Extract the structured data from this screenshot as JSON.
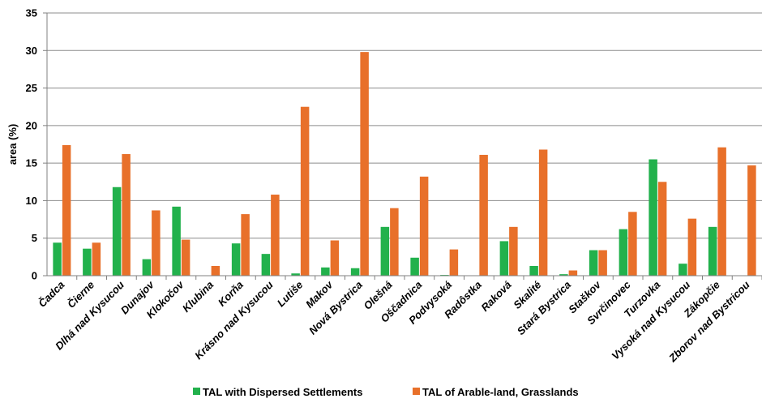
{
  "chart_data": {
    "type": "bar",
    "ylabel": "area (%)",
    "xlabel": "",
    "ylim": [
      0,
      35
    ],
    "yticks": [
      0,
      5,
      10,
      15,
      20,
      25,
      30,
      35
    ],
    "grid": true,
    "legend_position": "bottom",
    "categories": [
      "Čadca",
      "Čierne",
      "Dlhá nad Kysucou",
      "Dunajov",
      "Klokočov",
      "Klubina",
      "Korňa",
      "Krásno nad Kysucou",
      "Lutiše",
      "Makov",
      "Nová Bystrica",
      "Olešná",
      "Oščadnica",
      "Podvysoká",
      "Radôstka",
      "Raková",
      "Skalité",
      "Stará Bystrica",
      "Staškov",
      "Svrčinovec",
      "Turzovka",
      "Vysoká nad Kysucou",
      "Zákopčie",
      "Zborov nad Bystricou"
    ],
    "series": [
      {
        "name": "TAL with Dispersed Settlements",
        "color": "#22b14c",
        "values": [
          4.4,
          3.6,
          11.8,
          2.2,
          9.2,
          0.0,
          4.3,
          2.9,
          0.3,
          1.1,
          1.0,
          6.5,
          2.4,
          0.1,
          0.0,
          4.6,
          1.3,
          0.2,
          3.4,
          6.2,
          15.5,
          1.6,
          6.5,
          0.0
        ]
      },
      {
        "name": "TAL of Arable-land, Grasslands",
        "color": "#e8702a",
        "values": [
          17.4,
          4.4,
          16.2,
          8.7,
          4.8,
          1.3,
          8.2,
          10.8,
          22.5,
          4.7,
          29.8,
          9.0,
          13.2,
          3.5,
          16.1,
          6.5,
          16.8,
          0.7,
          3.4,
          8.5,
          12.5,
          7.6,
          17.1,
          14.7
        ]
      }
    ]
  }
}
